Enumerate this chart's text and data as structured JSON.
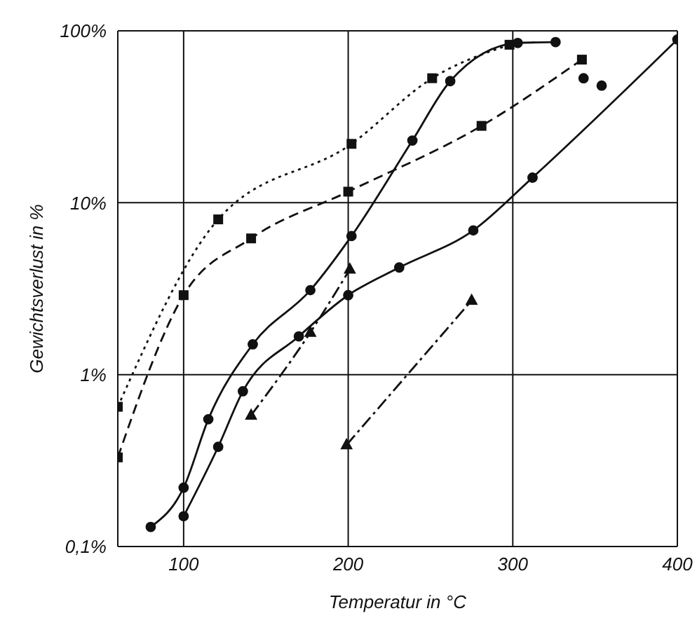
{
  "chart_data": {
    "type": "line",
    "xlabel": "Temperatur in °C",
    "ylabel": "Gewichtsverlust  in %",
    "xlim": [
      60,
      400
    ],
    "xticks": [
      {
        "value": 60,
        "label": null
      },
      100,
      200,
      300,
      400
    ],
    "ylim": [
      0.1,
      100
    ],
    "yticks": [
      {
        "value": 0.1,
        "label": "0,1%"
      },
      {
        "value": 1,
        "label": "1%"
      },
      {
        "value": 10,
        "label": "10%"
      },
      {
        "value": 100,
        "label": "100%"
      }
    ],
    "log": "y",
    "grid": true,
    "series": [
      {
        "color": "#111111",
        "line_style": "dotted",
        "marker": "square",
        "x": [
          60,
          121,
          202,
          251,
          298
        ],
        "values": [
          0.65,
          8,
          22,
          53,
          83
        ]
      },
      {
        "color": "#111111",
        "line_style": "dashed",
        "marker": "square",
        "x": [
          60,
          100,
          141,
          200,
          281,
          342
        ],
        "values": [
          0.33,
          2.9,
          6.2,
          11.6,
          28,
          68
        ]
      },
      {
        "color": "#111111",
        "line_style": "solid",
        "marker": "circle",
        "x": [
          80,
          100,
          115,
          142,
          177,
          202,
          239,
          262,
          303,
          326
        ],
        "values": [
          0.13,
          0.22,
          0.55,
          1.5,
          3.1,
          6.4,
          23,
          51,
          85,
          86
        ]
      },
      {
        "color": "#111111",
        "line_style": "solid",
        "marker": "circle",
        "x": [
          100,
          121,
          136,
          170,
          200,
          231,
          276,
          312,
          400
        ],
        "values": [
          0.15,
          0.38,
          0.8,
          1.67,
          2.9,
          4.2,
          6.9,
          14,
          89
        ]
      },
      {
        "type": "scatter",
        "color": "#111111",
        "marker": "circle",
        "x": [
          343,
          354
        ],
        "values": [
          53,
          48
        ]
      },
      {
        "color": "#111111",
        "line_style": "dashdot",
        "marker": "triangle",
        "x": [
          141,
          177,
          201
        ],
        "values": [
          0.58,
          1.76,
          4.1
        ]
      },
      {
        "color": "#111111",
        "line_style": "dashdot",
        "marker": "triangle",
        "x": [
          199,
          275
        ],
        "values": [
          0.39,
          2.7
        ]
      }
    ]
  }
}
